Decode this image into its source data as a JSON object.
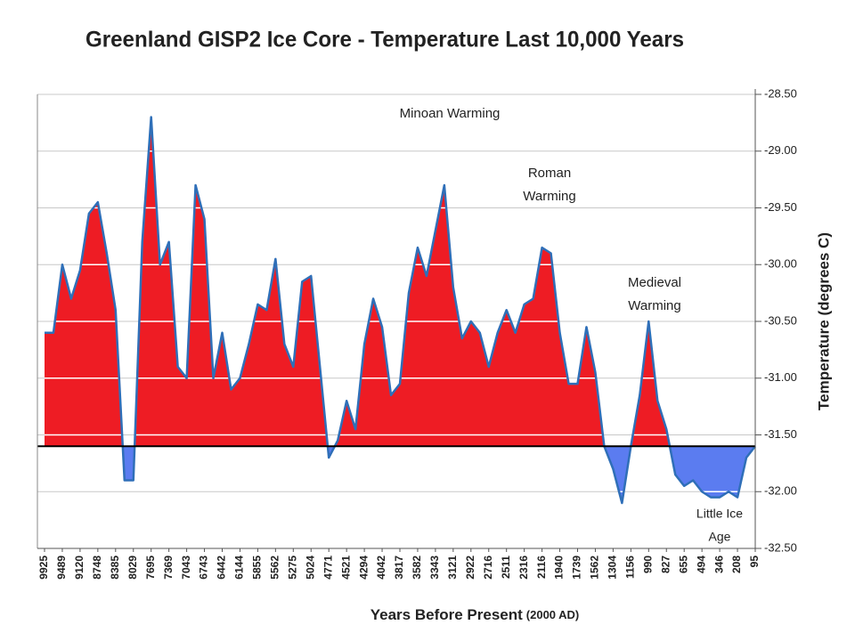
{
  "chart_data": {
    "type": "area",
    "title": "Greenland GISP2 Ice Core - Temperature  Last 10,000 Years",
    "x_label": "Years Before Present",
    "x_label_note": "(2000 AD)",
    "y_label": "Temperature (degrees C)",
    "baseline": -31.6,
    "color_above": "#ee1c24",
    "color_below": "#5b7cf0",
    "line_color": "#2f6fb8",
    "grid": true,
    "annotations": [
      {
        "lines": [
          "Minoan Warming"
        ]
      },
      {
        "lines": [
          "Roman",
          "Warming"
        ]
      },
      {
        "lines": [
          "Medieval",
          "Warming"
        ]
      },
      {
        "lines": [
          "Little Ice",
          "Age"
        ]
      }
    ],
    "ylim": [
      -32.5,
      -28.5
    ],
    "yticks": [
      {
        "value": -28.5,
        "label": "-28.50"
      },
      {
        "value": -29,
        "label": "-29.00"
      },
      {
        "value": -29.5,
        "label": "-29.50"
      },
      {
        "value": -30,
        "label": "-30.00"
      },
      {
        "value": -30.5,
        "label": "-30.50"
      },
      {
        "value": -31,
        "label": "-31.00"
      },
      {
        "value": -31.5,
        "label": "-31.50"
      },
      {
        "value": -32,
        "label": "-32.00"
      },
      {
        "value": -32.5,
        "label": "-32.50"
      }
    ],
    "categories": [
      "9925",
      null,
      "9489",
      null,
      "9120",
      null,
      "8748",
      null,
      "8385",
      null,
      "8029",
      null,
      "7695",
      null,
      "7369",
      null,
      "7043",
      null,
      "6743",
      null,
      "6442",
      null,
      "6144",
      null,
      "5855",
      null,
      "5562",
      null,
      "5275",
      null,
      "5024",
      null,
      "4771",
      null,
      "4521",
      null,
      "4294",
      null,
      "4042",
      null,
      "3817",
      null,
      "3582",
      null,
      "3343",
      null,
      "3121",
      null,
      "2922",
      null,
      "2716",
      null,
      "2511",
      null,
      "2316",
      null,
      "2116",
      null,
      "1940",
      null,
      "1739",
      null,
      "1562",
      null,
      "1304",
      null,
      "1156",
      null,
      "990",
      null,
      "827",
      null,
      "655",
      null,
      "494",
      null,
      "346",
      null,
      "208",
      null,
      "95"
    ],
    "values": [
      -30.6,
      -30.6,
      -30.0,
      -30.3,
      -30.05,
      -29.55,
      -29.45,
      -29.9,
      -30.4,
      -31.9,
      -31.9,
      -29.8,
      -28.7,
      -30.0,
      -29.8,
      -30.9,
      -31.0,
      -29.3,
      -29.6,
      -31.0,
      -30.6,
      -31.1,
      -31.0,
      -30.7,
      -30.35,
      -30.4,
      -29.95,
      -30.7,
      -30.9,
      -30.15,
      -30.1,
      -30.9,
      -31.7,
      -31.55,
      -31.2,
      -31.45,
      -30.7,
      -30.3,
      -30.55,
      -31.15,
      -31.05,
      -30.25,
      -29.85,
      -30.1,
      -29.7,
      -29.3,
      -30.2,
      -30.65,
      -30.5,
      -30.6,
      -30.9,
      -30.6,
      -30.4,
      -30.6,
      -30.35,
      -30.3,
      -29.85,
      -29.9,
      -30.6,
      -31.05,
      -31.05,
      -30.55,
      -30.95,
      -31.6,
      -31.8,
      -32.1,
      -31.6,
      -31.15,
      -30.5,
      -31.2,
      -31.45,
      -31.85,
      -31.95,
      -31.9,
      -32.0,
      -32.05,
      -32.05,
      -32.0,
      -32.05,
      -31.7,
      -31.6
    ]
  }
}
